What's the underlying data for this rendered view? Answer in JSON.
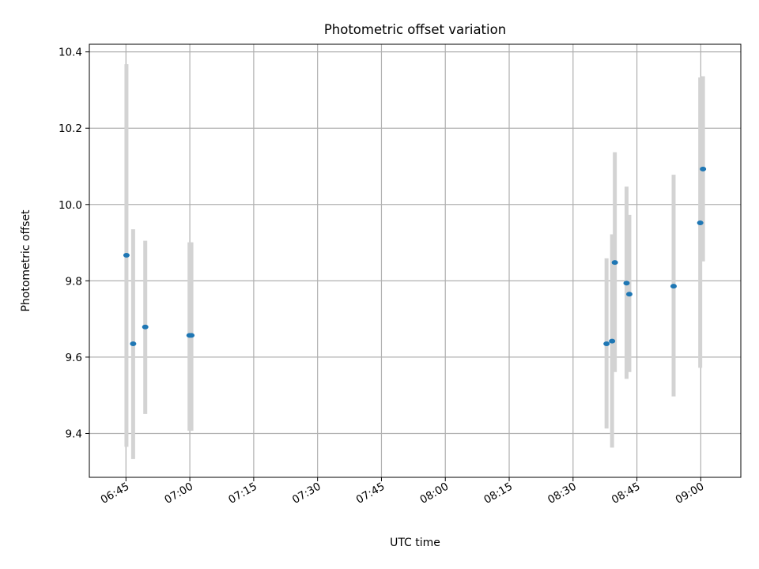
{
  "chart_data": {
    "type": "scatter",
    "title": "Photometric offset variation",
    "xlabel": "UTC time",
    "ylabel": "Photometric offset",
    "x_time_range": [
      "06:36:24",
      "09:09:24"
    ],
    "ylim": [
      9.285,
      10.42
    ],
    "x_ticks": [
      "06:45",
      "07:00",
      "07:15",
      "07:30",
      "07:45",
      "08:00",
      "08:15",
      "08:30",
      "08:45",
      "09:00"
    ],
    "y_ticks": [
      9.4,
      9.6,
      9.8,
      10.0,
      10.2,
      10.4
    ],
    "y_tick_labels": [
      "9.4",
      "9.6",
      "9.8",
      "10.0",
      "10.2",
      "10.4"
    ],
    "grid": true,
    "colors": {
      "point": "#1f77b4",
      "errorbar": "#d3d3d3",
      "grid": "#b0b0b0",
      "axes": "#000000"
    },
    "points": [
      {
        "time": "06:45:07",
        "y": 9.867,
        "lower": 9.365,
        "upper": 10.368
      },
      {
        "time": "06:46:41",
        "y": 9.635,
        "lower": 9.333,
        "upper": 9.935
      },
      {
        "time": "06:49:32",
        "y": 9.679,
        "lower": 9.451,
        "upper": 9.905
      },
      {
        "time": "06:59:56",
        "y": 9.657,
        "lower": 9.407,
        "upper": 9.901
      },
      {
        "time": "07:00:22",
        "y": 9.657,
        "lower": 9.407,
        "upper": 9.901
      },
      {
        "time": "08:37:52",
        "y": 9.635,
        "lower": 9.413,
        "upper": 9.859
      },
      {
        "time": "08:39:10",
        "y": 9.642,
        "lower": 9.363,
        "upper": 9.922
      },
      {
        "time": "08:39:49",
        "y": 9.848,
        "lower": 9.561,
        "upper": 10.137
      },
      {
        "time": "08:42:34",
        "y": 9.794,
        "lower": 9.543,
        "upper": 10.047
      },
      {
        "time": "08:43:13",
        "y": 9.765,
        "lower": 9.561,
        "upper": 9.973
      },
      {
        "time": "08:53:37",
        "y": 9.786,
        "lower": 9.497,
        "upper": 10.078
      },
      {
        "time": "08:59:52",
        "y": 9.952,
        "lower": 9.572,
        "upper": 10.333
      },
      {
        "time": "09:00:31",
        "y": 10.093,
        "lower": 9.851,
        "upper": 10.336
      }
    ]
  }
}
